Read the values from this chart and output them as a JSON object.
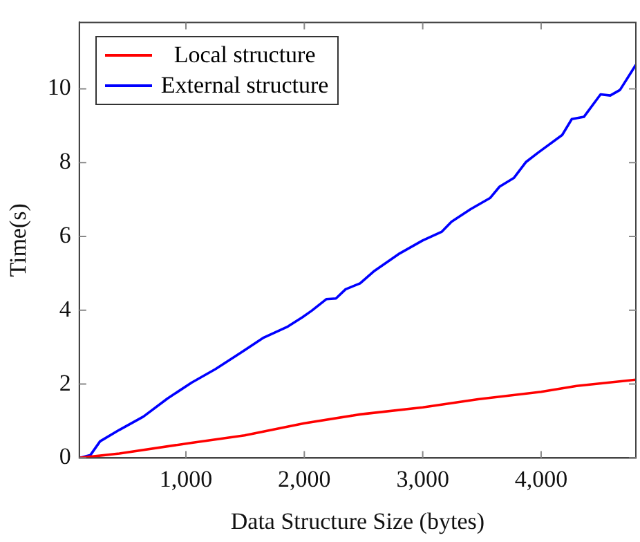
{
  "chart_data": {
    "type": "line",
    "xlabel": "Data Structure Size (bytes)",
    "ylabel": "Time(s)",
    "xlim": [
      100,
      4800
    ],
    "xticks": [
      {
        "value": 1000,
        "label": "1,000"
      },
      {
        "value": 2000,
        "label": "2,000"
      },
      {
        "value": 3000,
        "label": "3,000"
      },
      {
        "value": 4000,
        "label": "4,000"
      }
    ],
    "ylim": [
      0,
      11.8
    ],
    "yticks": [
      0,
      2,
      4,
      6,
      8,
      10
    ],
    "grid": false,
    "legend": "top left",
    "marker": "none",
    "line_style": "solid",
    "series": [
      {
        "name": "Local structure",
        "color": "#ff0000",
        "x": [
          100,
          438,
          1050,
          1496,
          2000,
          2471,
          3000,
          3467,
          4000,
          4300,
          4800
        ],
        "values": [
          0,
          0.12,
          0.41,
          0.61,
          0.94,
          1.18,
          1.37,
          1.59,
          1.79,
          1.95,
          2.12
        ]
      },
      {
        "name": "External structure",
        "color": "#0000ff",
        "x": [
          100,
          194,
          275,
          438,
          641,
          844,
          1048,
          1251,
          1454,
          1657,
          1861,
          1983,
          2063,
          2185,
          2267,
          2349,
          2471,
          2593,
          2795,
          2999,
          3162,
          3243,
          3405,
          3568,
          3649,
          3771,
          3873,
          3974,
          4178,
          4259,
          4361,
          4502,
          4584,
          4666,
          4800
        ],
        "values": [
          0,
          0.08,
          0.45,
          0.76,
          1.12,
          1.61,
          2.04,
          2.41,
          2.83,
          3.26,
          3.56,
          3.81,
          3.99,
          4.3,
          4.32,
          4.57,
          4.73,
          5.07,
          5.52,
          5.89,
          6.13,
          6.4,
          6.74,
          7.04,
          7.35,
          7.59,
          8.02,
          8.27,
          8.75,
          9.18,
          9.24,
          9.85,
          9.82,
          9.97,
          10.65
        ]
      }
    ]
  }
}
